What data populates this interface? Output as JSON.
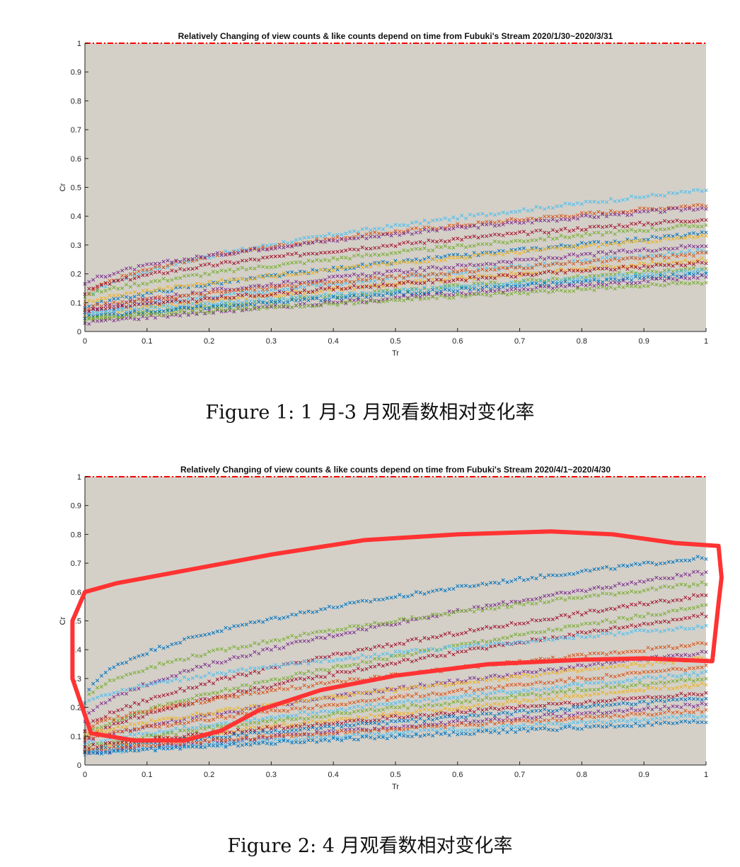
{
  "colors": {
    "plot_background": "#d4d0c8",
    "ref_line": "#ff0000",
    "annotation": "#ff3333",
    "series_palette": [
      "#0072bd",
      "#d95319",
      "#edb120",
      "#7e2f8e",
      "#77ac30",
      "#4dbeee",
      "#a2142f"
    ]
  },
  "captions": {
    "figure1": "Figure 1: 1 月-3 月观看数相对变化率",
    "figure2": "Figure 2: 4 月观看数相对变化率"
  },
  "chart_data": [
    {
      "type": "scatter",
      "title": "Relatively Changing of view counts & like counts depend on time from Fubuki's Stream 2020/1/30~2020/3/31",
      "xlabel": "Tr",
      "ylabel": "Cr",
      "xlim": [
        0,
        1
      ],
      "ylim": [
        0,
        1
      ],
      "x_ticks": [
        "0",
        "0.1",
        "0.2",
        "0.3",
        "0.4",
        "0.5",
        "0.6",
        "0.7",
        "0.8",
        "0.9",
        "1"
      ],
      "y_ticks": [
        "0",
        "0.1",
        "0.2",
        "0.3",
        "0.4",
        "0.5",
        "0.6",
        "0.7",
        "0.8",
        "0.9",
        "1"
      ],
      "marker": "x",
      "grid": false,
      "reference_line": {
        "y": 1,
        "style": "dash-dot",
        "color": "#ff0000"
      },
      "series": [
        {
          "color": "#4dbeee",
          "start": 0.1,
          "end": 0.49,
          "curve": 0.55
        },
        {
          "color": "#d95319",
          "start": 0.09,
          "end": 0.44,
          "curve": 0.45
        },
        {
          "color": "#7e2f8e",
          "start": 0.16,
          "end": 0.43,
          "curve": 0.6
        },
        {
          "color": "#a2142f",
          "start": 0.13,
          "end": 0.39,
          "curve": 0.6
        },
        {
          "color": "#77ac30",
          "start": 0.12,
          "end": 0.37,
          "curve": 0.7
        },
        {
          "color": "#0072bd",
          "start": 0.08,
          "end": 0.34,
          "curve": 0.7
        },
        {
          "color": "#edb120",
          "start": 0.1,
          "end": 0.33,
          "curve": 0.75
        },
        {
          "color": "#7e2f8e",
          "start": 0.07,
          "end": 0.3,
          "curve": 0.75
        },
        {
          "color": "#4dbeee",
          "start": 0.06,
          "end": 0.28,
          "curve": 0.8
        },
        {
          "color": "#d95319",
          "start": 0.08,
          "end": 0.27,
          "curve": 0.8
        },
        {
          "color": "#edb120",
          "start": 0.05,
          "end": 0.25,
          "curve": 0.8
        },
        {
          "color": "#a2142f",
          "start": 0.07,
          "end": 0.24,
          "curve": 0.85
        },
        {
          "color": "#77ac30",
          "start": 0.04,
          "end": 0.22,
          "curve": 0.85
        },
        {
          "color": "#4dbeee",
          "start": 0.06,
          "end": 0.21,
          "curve": 0.9
        },
        {
          "color": "#0072bd",
          "start": 0.05,
          "end": 0.2,
          "curve": 0.9
        },
        {
          "color": "#7e2f8e",
          "start": 0.03,
          "end": 0.19,
          "curve": 0.9
        },
        {
          "color": "#77ac30",
          "start": 0.04,
          "end": 0.17,
          "curve": 0.9
        }
      ]
    },
    {
      "type": "scatter",
      "title": "Relatively Changing of view counts & like counts depend on time from Fubuki's Stream 2020/4/1~2020/4/30",
      "xlabel": "Tr",
      "ylabel": "Cr",
      "xlim": [
        0,
        1
      ],
      "ylim": [
        0,
        1
      ],
      "x_ticks": [
        "0",
        "0.1",
        "0.2",
        "0.3",
        "0.4",
        "0.5",
        "0.6",
        "0.7",
        "0.8",
        "0.9",
        "1"
      ],
      "y_ticks": [
        "0",
        "0.1",
        "0.2",
        "0.3",
        "0.4",
        "0.5",
        "0.6",
        "0.7",
        "0.8",
        "0.9",
        "1"
      ],
      "marker": "x",
      "grid": false,
      "reference_line": {
        "y": 1,
        "style": "dash-dot",
        "color": "#ff0000"
      },
      "annotation": {
        "shape": "freehand-loop",
        "color": "#ff3333",
        "note": "hand-drawn red outline around upper series"
      },
      "series": [
        {
          "color": "#0072bd",
          "start": 0.21,
          "end": 0.72,
          "curve": 0.45
        },
        {
          "color": "#7e2f8e",
          "start": 0.15,
          "end": 0.67,
          "curve": 0.6
        },
        {
          "color": "#77ac30",
          "start": 0.22,
          "end": 0.63,
          "curve": 0.55
        },
        {
          "color": "#a2142f",
          "start": 0.12,
          "end": 0.59,
          "curve": 0.65
        },
        {
          "color": "#77ac30",
          "start": 0.1,
          "end": 0.55,
          "curve": 0.7
        },
        {
          "color": "#a2142f",
          "start": 0.09,
          "end": 0.52,
          "curve": 0.7
        },
        {
          "color": "#4dbeee",
          "start": 0.21,
          "end": 0.48,
          "curve": 0.6
        },
        {
          "color": "#d95319",
          "start": 0.12,
          "end": 0.42,
          "curve": 0.65
        },
        {
          "color": "#7e2f8e",
          "start": 0.08,
          "end": 0.39,
          "curve": 0.75
        },
        {
          "color": "#edb120",
          "start": 0.1,
          "end": 0.37,
          "curve": 0.75
        },
        {
          "color": "#d95319",
          "start": 0.09,
          "end": 0.34,
          "curve": 0.8
        },
        {
          "color": "#4dbeee",
          "start": 0.07,
          "end": 0.32,
          "curve": 0.8
        },
        {
          "color": "#77ac30",
          "start": 0.06,
          "end": 0.3,
          "curve": 0.8
        },
        {
          "color": "#edb120",
          "start": 0.05,
          "end": 0.28,
          "curve": 0.85
        },
        {
          "color": "#a2142f",
          "start": 0.06,
          "end": 0.25,
          "curve": 0.85
        },
        {
          "color": "#0072bd",
          "start": 0.05,
          "end": 0.23,
          "curve": 0.85
        },
        {
          "color": "#7e2f8e",
          "start": 0.04,
          "end": 0.21,
          "curve": 0.9
        },
        {
          "color": "#d95319",
          "start": 0.05,
          "end": 0.19,
          "curve": 0.9
        },
        {
          "color": "#4dbeee",
          "start": 0.04,
          "end": 0.17,
          "curve": 0.9
        },
        {
          "color": "#0072bd",
          "start": 0.04,
          "end": 0.15,
          "curve": 0.9
        }
      ]
    }
  ]
}
